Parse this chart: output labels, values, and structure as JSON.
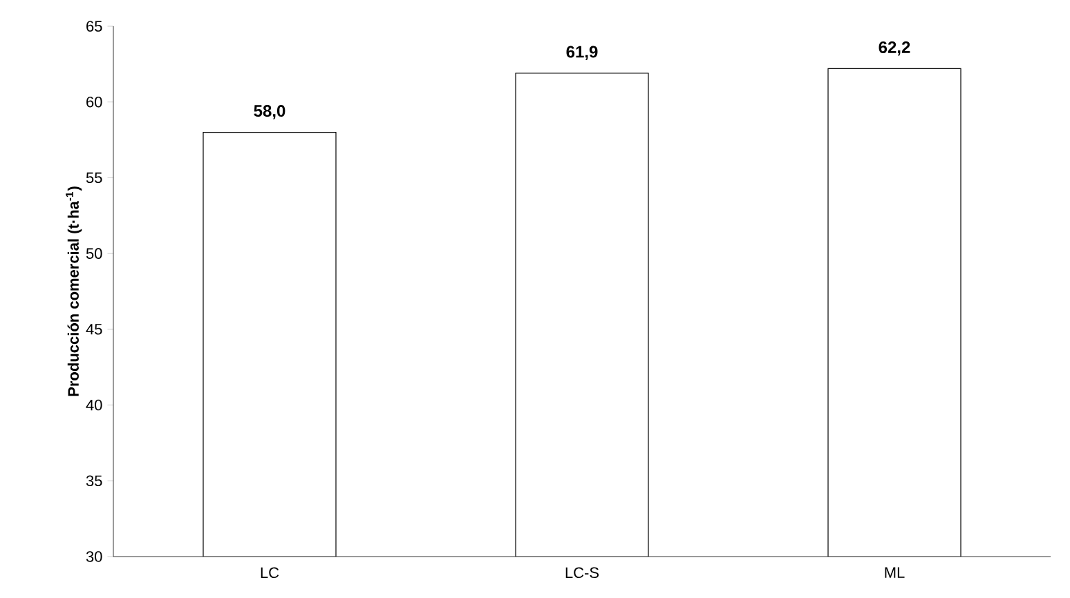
{
  "chart_data": {
    "type": "bar",
    "ylabel": "Producción comercial (t·ha$^{-1}$)",
    "categories": [
      "LC",
      "LC-S",
      "ML"
    ],
    "values": [
      58.0,
      61.9,
      62.2
    ],
    "value_labels": [
      "58,0",
      "61,9",
      "62,2"
    ],
    "color": "#ffffff",
    "ylim": [
      30,
      65
    ],
    "yticks": [
      30,
      35,
      40,
      45,
      50,
      55,
      60,
      65
    ],
    "grid": false
  }
}
